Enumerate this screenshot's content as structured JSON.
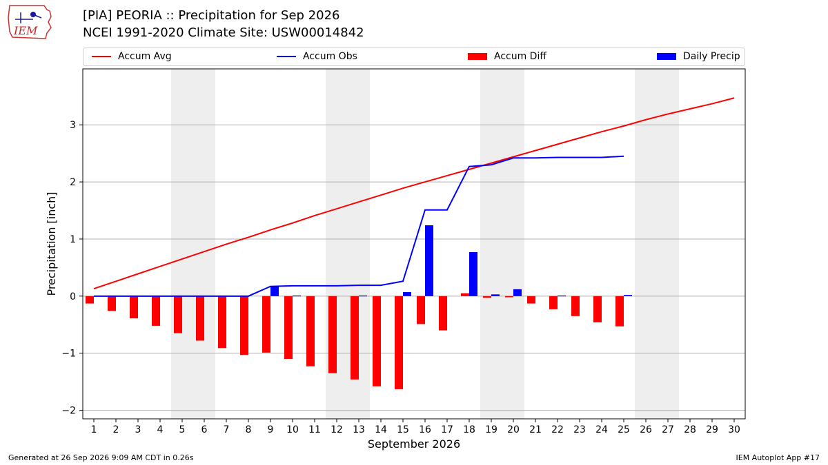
{
  "header": {
    "title": "[PIA] PEORIA :: Precipitation for Sep 2026",
    "subtitle": "NCEI 1991-2020 Climate Site: USW00014842",
    "logo_text": "IEM"
  },
  "footer": {
    "generated": "Generated at 26 Sep 2026 9:09 AM CDT in 0.26s",
    "app": "IEM Autoplot App #17"
  },
  "colors": {
    "avg": "#ff0000",
    "obs": "#0000ff",
    "diff": "#ff0000",
    "daily": "#0000ff",
    "weekend_band": "#eeeeee",
    "grid": "#b0b0b0"
  },
  "chart_data": {
    "type": "bar",
    "xlabel": "September 2026",
    "ylabel": "Precipitation [inch]",
    "xlim": [
      0.5,
      30.5
    ],
    "ylim": [
      -2.15,
      3.98
    ],
    "yticks": [
      -2,
      -1,
      0,
      1,
      2,
      3
    ],
    "grid": true,
    "legend_position": "top, above plot",
    "weekend_bands": [
      [
        4.5,
        6.5
      ],
      [
        11.5,
        13.5
      ],
      [
        18.5,
        20.5
      ],
      [
        25.5,
        27.5
      ]
    ],
    "days": [
      1,
      2,
      3,
      4,
      5,
      6,
      7,
      8,
      9,
      10,
      11,
      12,
      13,
      14,
      15,
      16,
      17,
      18,
      19,
      20,
      21,
      22,
      23,
      24,
      25,
      26,
      27,
      28,
      29,
      30
    ],
    "series": [
      {
        "name": "Accum Avg",
        "kind": "line",
        "x": [
          1,
          2,
          3,
          4,
          5,
          6,
          7,
          8,
          9,
          10,
          11,
          12,
          13,
          14,
          15,
          16,
          17,
          18,
          19,
          20,
          21,
          22,
          23,
          24,
          25,
          26,
          27,
          28,
          29,
          30
        ],
        "values": [
          0.13,
          0.26,
          0.39,
          0.52,
          0.65,
          0.78,
          0.91,
          1.03,
          1.16,
          1.28,
          1.41,
          1.53,
          1.65,
          1.77,
          1.89,
          2.0,
          2.11,
          2.22,
          2.33,
          2.44,
          2.55,
          2.66,
          2.77,
          2.88,
          2.98,
          3.09,
          3.19,
          3.28,
          3.37,
          3.47
        ]
      },
      {
        "name": "Accum Obs",
        "kind": "line",
        "x": [
          1,
          2,
          3,
          4,
          5,
          6,
          7,
          8,
          9,
          10,
          11,
          12,
          13,
          14,
          15,
          16,
          17,
          18,
          19,
          20,
          21,
          22,
          23,
          24,
          25
        ],
        "values": [
          0.0,
          0.0,
          0.0,
          0.0,
          0.0,
          0.0,
          0.0,
          0.0,
          0.17,
          0.18,
          0.18,
          0.18,
          0.19,
          0.19,
          0.26,
          1.51,
          1.51,
          2.27,
          2.3,
          2.42,
          2.42,
          2.43,
          2.43,
          2.43,
          2.45
        ]
      },
      {
        "name": "Accum Diff",
        "kind": "bar",
        "x": [
          1,
          2,
          3,
          4,
          5,
          6,
          7,
          8,
          9,
          10,
          11,
          12,
          13,
          14,
          15,
          16,
          17,
          18,
          19,
          20,
          21,
          22,
          23,
          24,
          25
        ],
        "values": [
          -0.13,
          -0.26,
          -0.39,
          -0.52,
          -0.65,
          -0.78,
          -0.91,
          -1.03,
          -0.99,
          -1.1,
          -1.23,
          -1.35,
          -1.46,
          -1.58,
          -1.63,
          -0.49,
          -0.6,
          0.05,
          -0.03,
          -0.02,
          -0.13,
          -0.23,
          -0.35,
          -0.46,
          -0.53
        ]
      },
      {
        "name": "Daily Precip",
        "kind": "bar",
        "x": [
          1,
          2,
          3,
          4,
          5,
          6,
          7,
          8,
          9,
          10,
          11,
          12,
          13,
          14,
          15,
          16,
          17,
          18,
          19,
          20,
          21,
          22,
          23,
          24,
          25
        ],
        "values": [
          0,
          0,
          0,
          0,
          0,
          0,
          0,
          0,
          0.17,
          0.01,
          0,
          0,
          0.01,
          0,
          0.07,
          1.24,
          0,
          0.77,
          0.03,
          0.12,
          0,
          0.01,
          0,
          0,
          0.02
        ]
      }
    ]
  }
}
